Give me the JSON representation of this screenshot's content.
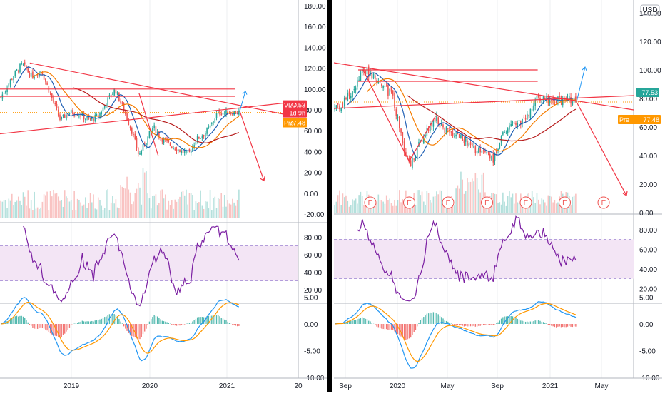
{
  "colors": {
    "up": "#26a69a",
    "down": "#ef5350",
    "trend": "#f23645",
    "projection_up": "#2196f3",
    "rsi": "#7b1fa2",
    "rsi_band": "#f3e5f5",
    "ma_fast": "#1e5fb4",
    "ma_mid": "#f57c00",
    "ma_slow": "#b71c1c",
    "macd": "#2196f3",
    "signal": "#ff9800",
    "grid": "#eceff1",
    "divider": "#000000"
  },
  "chart_data": [
    {
      "type": "candlestick",
      "panel": "left",
      "symbol": "VLO",
      "price_axis": {
        "ticks": [
          "180.00",
          "160.00",
          "140.00",
          "120.00",
          "100.00",
          "80.00",
          "60.00",
          "40.00",
          "20.00",
          "0.00",
          "-20.00"
        ],
        "ylim": [
          -20,
          180
        ]
      },
      "x_labels": [
        "2019",
        "2020",
        "2021",
        "20"
      ],
      "tags": [
        {
          "label": "VLO",
          "value": "77.53",
          "extra": "1d 9h",
          "color": "#f23645"
        },
        {
          "label": "Pre",
          "value": "77.48",
          "color": "#ff9800"
        }
      ],
      "close_path": [
        [
          0,
          92
        ],
        [
          0.05,
          112
        ],
        [
          0.09,
          124
        ],
        [
          0.13,
          112
        ],
        [
          0.17,
          118
        ],
        [
          0.21,
          94
        ],
        [
          0.25,
          70
        ],
        [
          0.29,
          78
        ],
        [
          0.33,
          76
        ],
        [
          0.37,
          70
        ],
        [
          0.41,
          74
        ],
        [
          0.45,
          90
        ],
        [
          0.48,
          100
        ],
        [
          0.52,
          78
        ],
        [
          0.55,
          60
        ],
        [
          0.58,
          36
        ],
        [
          0.61,
          50
        ],
        [
          0.64,
          64
        ],
        [
          0.67,
          54
        ],
        [
          0.7,
          48
        ],
        [
          0.73,
          44
        ],
        [
          0.76,
          40
        ],
        [
          0.79,
          38
        ],
        [
          0.82,
          52
        ],
        [
          0.85,
          56
        ],
        [
          0.88,
          64
        ],
        [
          0.91,
          77.5
        ]
      ],
      "trendlines": [
        {
          "from": [
            0.1,
            125
          ],
          "to": [
            1.0,
            73
          ]
        },
        {
          "from": [
            0.0,
            57
          ],
          "to": [
            1.0,
            88
          ]
        }
      ],
      "h_levels": [
        100,
        93
      ]
    },
    {
      "type": "candlestick",
      "panel": "right",
      "currency": "USD",
      "price_axis": {
        "ticks": [
          "140.00",
          "120.00",
          "100.00",
          "80.00",
          "60.00",
          "40.00",
          "20.00",
          "0.00"
        ],
        "ylim": [
          0,
          145
        ]
      },
      "x_labels": [
        "Sep",
        "2020",
        "May",
        "Sep",
        "2021",
        "May"
      ],
      "tags": [
        {
          "label": "",
          "value": "77.53",
          "color": "#26a69a"
        },
        {
          "label": "Pre",
          "value": "77.48",
          "color": "#ff9800"
        }
      ],
      "earnings_marker": "E",
      "earnings_count": 7,
      "close_path": [
        [
          0,
          72
        ],
        [
          0.04,
          78
        ],
        [
          0.08,
          86
        ],
        [
          0.12,
          100
        ],
        [
          0.16,
          96
        ],
        [
          0.2,
          88
        ],
        [
          0.24,
          82
        ],
        [
          0.28,
          50
        ],
        [
          0.31,
          32
        ],
        [
          0.34,
          44
        ],
        [
          0.38,
          58
        ],
        [
          0.42,
          66
        ],
        [
          0.46,
          58
        ],
        [
          0.5,
          56
        ],
        [
          0.54,
          50
        ],
        [
          0.58,
          44
        ],
        [
          0.62,
          40
        ],
        [
          0.66,
          38
        ],
        [
          0.7,
          56
        ],
        [
          0.74,
          62
        ],
        [
          0.78,
          64
        ],
        [
          0.81,
          70
        ],
        [
          0.84,
          79
        ]
      ],
      "trendlines": [
        {
          "from": [
            0.0,
            105
          ],
          "to": [
            1.0,
            72
          ]
        },
        {
          "from": [
            0.0,
            73
          ],
          "to": [
            1.0,
            82
          ]
        }
      ],
      "h_levels": [
        100,
        92
      ]
    }
  ],
  "rsi_axis_left": {
    "ticks": [
      "80.00",
      "60.00",
      "40.00",
      "20.00"
    ]
  },
  "rsi_axis_right": {
    "ticks": [
      "80.00",
      "60.00",
      "40.00",
      "20.00"
    ]
  },
  "macd_axis_left": {
    "ticks": [
      "5.00",
      "0.00",
      "-5.00",
      "-10.00"
    ]
  },
  "macd_axis_right": {
    "ticks": [
      "5.00",
      "0.00",
      "-5.00",
      "-10.00"
    ]
  }
}
